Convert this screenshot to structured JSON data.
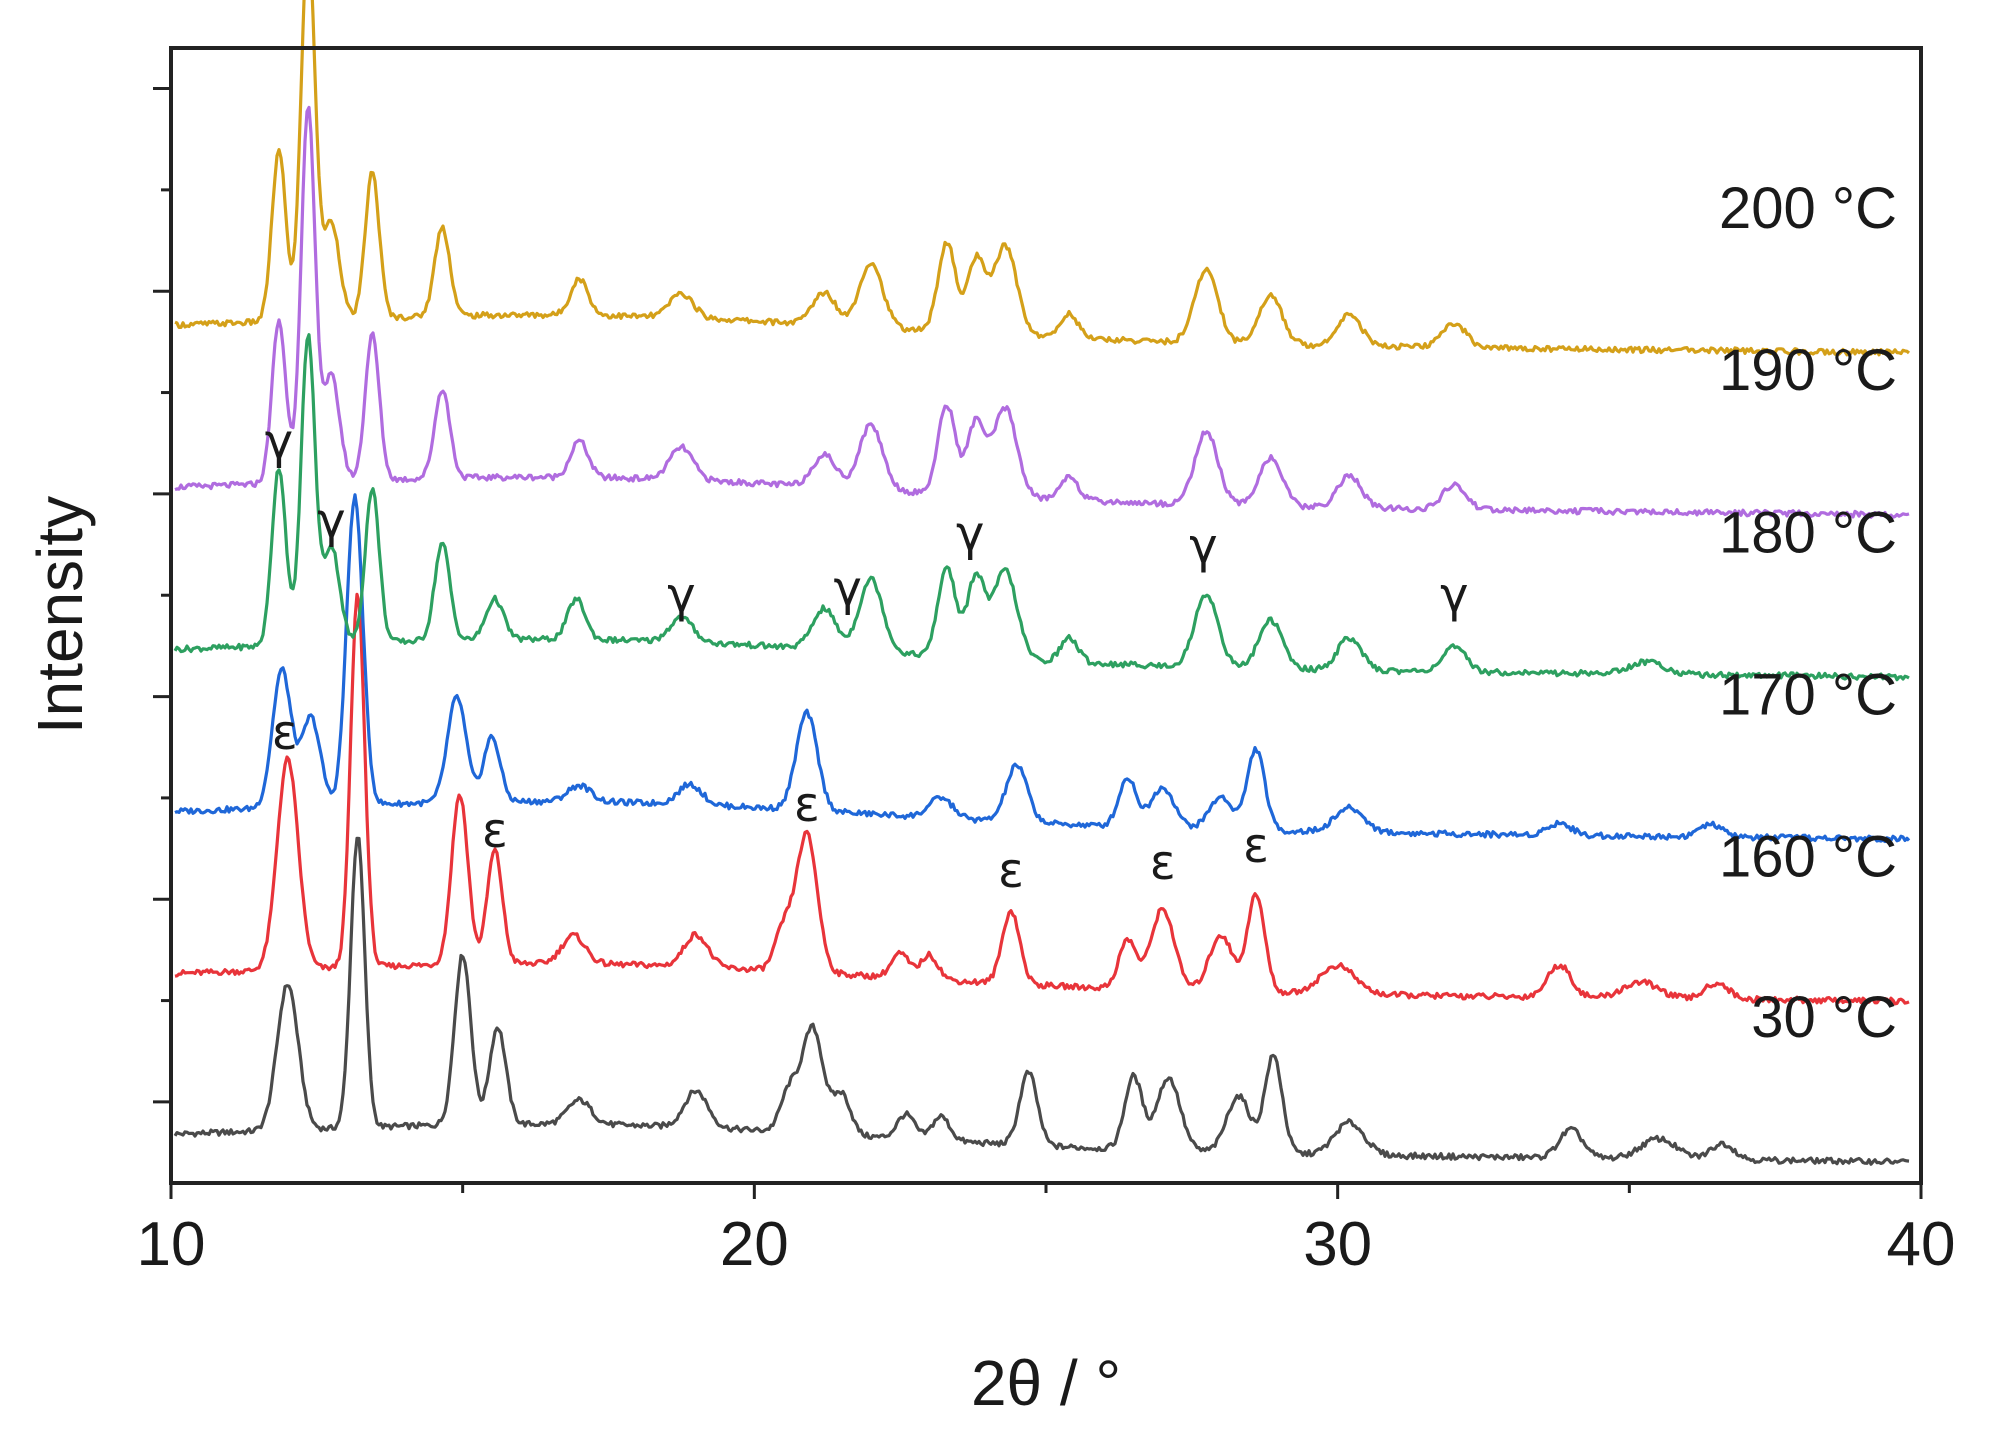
{
  "chart_data": {
    "type": "line",
    "title": "",
    "xlabel": "2θ / °",
    "ylabel": "Intensity",
    "xlim": [
      10,
      40
    ],
    "x_ticks": [
      "10",
      "20",
      "30",
      "40"
    ],
    "y_ticks_labeled": false,
    "grid": false,
    "legend": "none (series labeled at right end of each trace)",
    "series": [
      {
        "name": "30 °C",
        "color": "#4a4a4a",
        "baseline": 0.5,
        "peaks": [
          [
            12.0,
            1.8,
            0.18
          ],
          [
            13.2,
            3.6,
            0.12
          ],
          [
            15.0,
            2.1,
            0.14
          ],
          [
            15.6,
            1.2,
            0.14
          ],
          [
            17.0,
            0.3,
            0.2
          ],
          [
            19.0,
            0.45,
            0.2
          ],
          [
            20.6,
            0.5,
            0.15
          ],
          [
            21.0,
            1.3,
            0.18
          ],
          [
            21.5,
            0.5,
            0.15
          ],
          [
            22.6,
            0.3,
            0.15
          ],
          [
            23.2,
            0.3,
            0.15
          ],
          [
            24.7,
            0.9,
            0.15
          ],
          [
            26.5,
            0.9,
            0.15
          ],
          [
            27.1,
            0.9,
            0.2
          ],
          [
            28.3,
            0.7,
            0.2
          ],
          [
            28.9,
            1.2,
            0.15
          ],
          [
            30.2,
            0.4,
            0.25
          ],
          [
            34.0,
            0.35,
            0.2
          ],
          [
            35.5,
            0.25,
            0.3
          ],
          [
            36.6,
            0.2,
            0.2
          ]
        ]
      },
      {
        "name": "160 °C",
        "color": "#e8343a",
        "baseline": 2.48,
        "peaks": [
          [
            12.0,
            2.6,
            0.18
          ],
          [
            13.2,
            4.6,
            0.12
          ],
          [
            14.95,
            2.1,
            0.14
          ],
          [
            15.55,
            1.4,
            0.13
          ],
          [
            16.9,
            0.35,
            0.2
          ],
          [
            19.0,
            0.4,
            0.2
          ],
          [
            20.5,
            0.5,
            0.15
          ],
          [
            20.9,
            1.7,
            0.18
          ],
          [
            22.5,
            0.3,
            0.15
          ],
          [
            23.0,
            0.3,
            0.15
          ],
          [
            24.4,
            0.9,
            0.15
          ],
          [
            26.4,
            0.6,
            0.15
          ],
          [
            27.0,
            1.0,
            0.2
          ],
          [
            28.0,
            0.7,
            0.2
          ],
          [
            28.6,
            1.2,
            0.15
          ],
          [
            30.0,
            0.35,
            0.3
          ],
          [
            33.8,
            0.4,
            0.2
          ],
          [
            35.2,
            0.2,
            0.3
          ],
          [
            36.5,
            0.2,
            0.2
          ]
        ]
      },
      {
        "name": "170 °C",
        "color": "#1f67d8",
        "baseline": 4.48,
        "peaks": [
          [
            11.9,
            1.7,
            0.16
          ],
          [
            12.4,
            1.1,
            0.16
          ],
          [
            13.15,
            3.8,
            0.14
          ],
          [
            14.9,
            1.3,
            0.16
          ],
          [
            15.5,
            0.8,
            0.14
          ],
          [
            17.0,
            0.2,
            0.2
          ],
          [
            18.9,
            0.25,
            0.2
          ],
          [
            20.9,
            1.2,
            0.18
          ],
          [
            23.2,
            0.25,
            0.2
          ],
          [
            24.5,
            0.7,
            0.18
          ],
          [
            26.4,
            0.6,
            0.15
          ],
          [
            27.0,
            0.5,
            0.2
          ],
          [
            28.0,
            0.4,
            0.2
          ],
          [
            28.6,
            1.0,
            0.15
          ],
          [
            30.2,
            0.3,
            0.25
          ],
          [
            33.8,
            0.15,
            0.2
          ],
          [
            36.4,
            0.15,
            0.2
          ]
        ]
      },
      {
        "name": "180 °C",
        "color": "#2da060",
        "baseline": 6.48,
        "peaks": [
          [
            11.85,
            2.2,
            0.12
          ],
          [
            12.35,
            3.8,
            0.12
          ],
          [
            12.75,
            1.2,
            0.14
          ],
          [
            13.45,
            1.9,
            0.12
          ],
          [
            14.65,
            1.2,
            0.13
          ],
          [
            15.55,
            0.5,
            0.15
          ],
          [
            16.95,
            0.5,
            0.15
          ],
          [
            18.75,
            0.3,
            0.2
          ],
          [
            21.2,
            0.5,
            0.2
          ],
          [
            22.0,
            0.9,
            0.2
          ],
          [
            23.3,
            1.1,
            0.15
          ],
          [
            23.8,
            1.0,
            0.15
          ],
          [
            24.3,
            1.1,
            0.2
          ],
          [
            25.4,
            0.3,
            0.15
          ],
          [
            27.75,
            0.9,
            0.2
          ],
          [
            28.85,
            0.6,
            0.2
          ],
          [
            30.2,
            0.4,
            0.2
          ],
          [
            32.0,
            0.3,
            0.2
          ],
          [
            35.3,
            0.15,
            0.3
          ]
        ]
      },
      {
        "name": "190 °C",
        "color": "#b06cdf",
        "baseline": 8.48,
        "peaks": [
          [
            11.85,
            2.0,
            0.12
          ],
          [
            12.35,
            4.6,
            0.12
          ],
          [
            12.75,
            1.3,
            0.14
          ],
          [
            13.45,
            1.8,
            0.12
          ],
          [
            14.65,
            1.1,
            0.13
          ],
          [
            17.0,
            0.45,
            0.15
          ],
          [
            18.75,
            0.4,
            0.2
          ],
          [
            21.2,
            0.4,
            0.2
          ],
          [
            22.0,
            0.8,
            0.2
          ],
          [
            23.3,
            1.1,
            0.15
          ],
          [
            23.8,
            0.9,
            0.15
          ],
          [
            24.3,
            1.1,
            0.2
          ],
          [
            25.4,
            0.3,
            0.15
          ],
          [
            27.75,
            0.9,
            0.2
          ],
          [
            28.85,
            0.6,
            0.2
          ],
          [
            30.2,
            0.4,
            0.2
          ],
          [
            32.0,
            0.3,
            0.2
          ]
        ]
      },
      {
        "name": "200 °C",
        "color": "#d4a019",
        "baseline": 10.48,
        "peaks": [
          [
            11.85,
            2.1,
            0.12
          ],
          [
            12.35,
            4.7,
            0.12
          ],
          [
            12.75,
            1.2,
            0.14
          ],
          [
            13.45,
            1.8,
            0.12
          ],
          [
            14.65,
            1.1,
            0.13
          ],
          [
            17.0,
            0.45,
            0.15
          ],
          [
            18.75,
            0.3,
            0.2
          ],
          [
            21.2,
            0.4,
            0.2
          ],
          [
            22.0,
            0.8,
            0.2
          ],
          [
            23.3,
            1.1,
            0.15
          ],
          [
            23.8,
            0.9,
            0.15
          ],
          [
            24.3,
            1.1,
            0.2
          ],
          [
            25.4,
            0.3,
            0.15
          ],
          [
            27.75,
            0.9,
            0.2
          ],
          [
            28.85,
            0.6,
            0.2
          ],
          [
            30.2,
            0.4,
            0.2
          ],
          [
            32.0,
            0.3,
            0.2
          ]
        ]
      }
    ],
    "annotations": [
      {
        "text": "ε",
        "series": "160 °C",
        "x": 11.95
      },
      {
        "text": "ε",
        "series": "160 °C",
        "x": 15.55
      },
      {
        "text": "ε",
        "series": "160 °C",
        "x": 20.9
      },
      {
        "text": "ε",
        "series": "160 °C",
        "x": 24.4
      },
      {
        "text": "ε",
        "series": "160 °C",
        "x": 27.0
      },
      {
        "text": "ε",
        "series": "160 °C",
        "x": 28.6
      },
      {
        "text": "γ",
        "series": "180 °C",
        "x": 11.85
      },
      {
        "text": "γ",
        "series": "180 °C",
        "x": 12.75
      },
      {
        "text": "γ",
        "series": "180 °C",
        "x": 18.75
      },
      {
        "text": "γ",
        "series": "180 °C",
        "x": 21.6
      },
      {
        "text": "γ",
        "series": "180 °C",
        "x": 23.7
      },
      {
        "text": "γ",
        "series": "180 °C",
        "x": 27.7
      },
      {
        "text": "γ",
        "series": "180 °C",
        "x": 32.0
      }
    ]
  }
}
